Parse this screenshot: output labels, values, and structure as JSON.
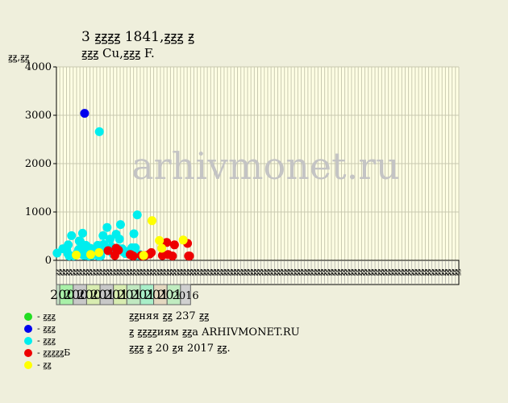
{
  "title": "3 ꙃꙃꙃꙃ 1841,ꙃꙃꙃ ꙃ",
  "subtitle": "ꙃꙃꙃ Cu,ꙃꙃꙃ F.",
  "watermark": "arhivmonet.ru",
  "legend": [
    {
      "label": "- ꙃꙃꙃ",
      "color": "#22dd22"
    },
    {
      "label": "- ꙃꙃꙃ",
      "color": "#0000ee"
    },
    {
      "label": "- ꙃꙃꙃ",
      "color": "#00eeee"
    },
    {
      "label": "- ꙃꙃꙃꙃꙃБ",
      "color": "#ee0000"
    },
    {
      "label": "- ꙃꙃ",
      "color": "#ffff00"
    }
  ],
  "info": {
    "line1": "ꙃꙃняя ꙃꙃ 237 ꙃꙃ",
    "line2": "ꙃ ꙃꙃꙃꙃиям ꙃꙃа ARHIVMONET.RU",
    "line3": "ꙃꙃꙃ ꙃ 20 ꙃя 2017 ꙃꙃ."
  },
  "chart_data": {
    "type": "scatter",
    "ylabel": "ꙃꙃ,ꙃꙃ",
    "ylim": [
      0,
      4000
    ],
    "yticks": [
      0,
      1000,
      2000,
      3000,
      4000
    ],
    "quarter_labels": [
      "ꙃꙃ",
      "ꙃꙃ",
      "ꙃꙃ",
      "ꙃꙃ",
      "ꙃꙃ",
      "ꙃꙃ",
      "ꙃꙃ",
      "ꙃꙃ",
      "ꙃꙃ",
      "ꙃꙃ",
      "ꙃꙃ",
      "ꙃꙃ",
      "ꙃꙃ",
      "ꙃꙃ",
      "ꙃꙃ",
      "ꙃꙃ",
      "ꙃꙃ",
      "ꙃꙃ",
      "ꙃꙃ",
      "ꙃꙃ",
      "ꙃꙃ",
      "ꙃꙃ",
      "ꙃꙃ",
      "ꙃꙃ",
      "ꙃꙃ",
      "ꙃꙃ",
      "ꙃꙃ",
      "ꙃꙃ",
      "ꙃꙃ",
      "ꙃꙃ",
      "ꙃꙃ",
      "ꙃꙃ",
      "ꙃꙃ",
      "ꙃꙃ",
      "ꙃꙃ",
      "ꙃꙃ",
      "ꙃꙃ",
      "ꙃꙃ",
      "ꙃꙃ",
      "ꙃꙃ",
      "ꙃꙃ",
      "ꙃꙃ",
      "ꙃꙃ",
      "ꙃꙃ",
      "ꙃꙃ",
      "ꙃꙃ",
      "ꙃꙃ",
      "ꙃꙃ",
      "ꙃꙃ",
      "ꙃꙃ",
      "ꙃꙃ",
      "ꙃꙃ",
      "ꙃꙃ",
      "ꙃꙃ",
      "ꙃꙃ",
      "ꙃꙃ",
      "ꙃꙃ",
      "ꙃꙃ",
      "ꙃꙃ",
      "ꙃꙃ",
      "ꙃꙃ",
      "ꙃꙃ",
      "ꙃꙃ",
      "ꙃꙃ",
      "ꙃꙃ",
      "ꙃꙃ",
      "ꙃꙃ",
      "ꙃꙃ",
      "ꙃꙃ",
      "ꙃꙃ",
      "ꙃꙃ",
      "ꙃꙃ",
      "ꙃꙃ",
      "ꙃꙃ",
      "ꙃꙃ",
      "ꙃꙃ",
      "ꙃꙃ",
      "ꙃꙃ",
      "ꙃꙃ",
      "ꙃꙃ",
      "ꙃꙃ",
      "ꙃꙃ",
      "ꙃꙃ",
      "ꙃꙃ",
      "ꙃꙃ",
      "ꙃꙃ",
      "ꙃꙃ",
      "ꙃꙃ",
      "ꙃꙃ",
      "ꙃꙃ",
      "ꙃꙃ",
      "ꙃꙃ",
      "ꙃꙃ",
      "ꙃꙃ",
      "ꙃꙃ",
      "ꙃꙃ",
      "ꙃꙃ",
      "ꙃꙃ",
      "ꙃꙃ",
      "ꙃꙃ",
      "ꙃꙃ",
      "ꙃꙃ",
      "ꙃꙃ",
      "ꙃꙃ",
      "ꙃꙃ",
      "ꙃꙃ",
      "ꙃꙃ",
      "ꙃꙃ",
      "ꙃꙃ",
      "ꙃꙃ",
      "ꙃꙃ",
      "ꙃꙃ",
      "ꙃꙃ",
      "ꙃꙃ",
      "ꙃꙃ",
      "ꙃꙃ",
      "ꙃꙃ",
      "ꙃꙃ",
      "ꙃꙃ",
      "ꙃꙃ"
    ],
    "year_bands": [
      {
        "label": "",
        "bg": "#c4e0c4",
        "q0": 0,
        "q1": 1
      },
      {
        "label": "2007",
        "bg": "#a8f0a8",
        "q0": 1,
        "q1": 5
      },
      {
        "label": "2008",
        "bg": "#c8c8c8",
        "q0": 5,
        "q1": 9
      },
      {
        "label": "2009",
        "bg": "#d8ecb0",
        "q0": 9,
        "q1": 13
      },
      {
        "label": "2010",
        "bg": "#c8c8c8",
        "q0": 13,
        "q1": 17
      },
      {
        "label": "2011",
        "bg": "#d8ecb0",
        "q0": 17,
        "q1": 21
      },
      {
        "label": "2012",
        "bg": "#c0e8c0",
        "q0": 21,
        "q1": 25
      },
      {
        "label": "2013",
        "bg": "#a8eec8",
        "q0": 25,
        "q1": 29
      },
      {
        "label": "2014",
        "bg": "#e4d8c0",
        "q0": 29,
        "q1": 33
      },
      {
        "label": "2015",
        "bg": "#c0ecc0",
        "q0": 33,
        "q1": 37
      },
      {
        "label": "2016",
        "bg": "#d0d0d0",
        "q0": 37,
        "q1": 40
      }
    ],
    "series": [
      {
        "name": "ꙃꙃꙃ",
        "color": "#22dd22",
        "points": [
          [
            13.0,
            120
          ]
        ]
      },
      {
        "name": "ꙃꙃꙃ",
        "color": "#0000ee",
        "points": [
          [
            8.4,
            3040
          ]
        ]
      },
      {
        "name": "ꙃꙃꙃ",
        "color": "#00eeee",
        "points": [
          [
            0.2,
            150
          ],
          [
            1.9,
            240
          ],
          [
            3.1,
            210
          ],
          [
            3.4,
            140
          ],
          [
            3.5,
            320
          ],
          [
            3.8,
            90
          ],
          [
            4.5,
            510
          ],
          [
            5.1,
            90
          ],
          [
            6.2,
            150
          ],
          [
            6.6,
            220
          ],
          [
            6.8,
            400
          ],
          [
            7.1,
            390
          ],
          [
            7.3,
            260
          ],
          [
            7.8,
            560
          ],
          [
            8.2,
            100
          ],
          [
            8.8,
            310
          ],
          [
            9.3,
            200
          ],
          [
            9.6,
            90
          ],
          [
            10.1,
            250
          ],
          [
            10.6,
            100
          ],
          [
            11.2,
            180
          ],
          [
            11.9,
            150
          ],
          [
            12.3,
            310
          ],
          [
            12.5,
            90
          ],
          [
            12.8,
            2660
          ],
          [
            13.2,
            90
          ],
          [
            13.9,
            510
          ],
          [
            14.1,
            330
          ],
          [
            14.5,
            220
          ],
          [
            15.1,
            680
          ],
          [
            16.0,
            440
          ],
          [
            16.4,
            280
          ],
          [
            16.8,
            140
          ],
          [
            17.8,
            540
          ],
          [
            18.2,
            250
          ],
          [
            18.8,
            440
          ],
          [
            19.1,
            740
          ],
          [
            19.6,
            240
          ],
          [
            20.1,
            170
          ],
          [
            20.6,
            140
          ],
          [
            21.1,
            180
          ],
          [
            22.5,
            260
          ],
          [
            23.1,
            550
          ],
          [
            23.5,
            260
          ],
          [
            24.1,
            940
          ],
          [
            24.3,
            100
          ],
          [
            24.8,
            120
          ]
        ]
      },
      {
        "name": "ꙃꙃꙃꙃꙃБ",
        "color": "#ee0000",
        "points": [
          [
            15.4,
            200
          ],
          [
            17.4,
            100
          ],
          [
            17.8,
            250
          ],
          [
            18.5,
            210
          ],
          [
            22.0,
            120
          ],
          [
            22.3,
            110
          ],
          [
            22.9,
            90
          ],
          [
            25.3,
            100
          ],
          [
            25.7,
            90
          ],
          [
            26.5,
            100
          ],
          [
            27.8,
            130
          ],
          [
            28.3,
            160
          ],
          [
            31.6,
            100
          ],
          [
            32.9,
            370
          ],
          [
            33.3,
            120
          ],
          [
            34.6,
            90
          ],
          [
            35.2,
            320
          ],
          [
            39.1,
            350
          ],
          [
            39.4,
            90
          ],
          [
            39.7,
            90
          ]
        ]
      },
      {
        "name": "ꙃꙃ",
        "color": "#ffff00",
        "points": [
          [
            5.9,
            110
          ],
          [
            10.2,
            120
          ],
          [
            12.7,
            160
          ],
          [
            26.0,
            100
          ],
          [
            28.5,
            820
          ],
          [
            30.7,
            410
          ],
          [
            31.4,
            250
          ],
          [
            37.8,
            420
          ]
        ]
      }
    ]
  }
}
